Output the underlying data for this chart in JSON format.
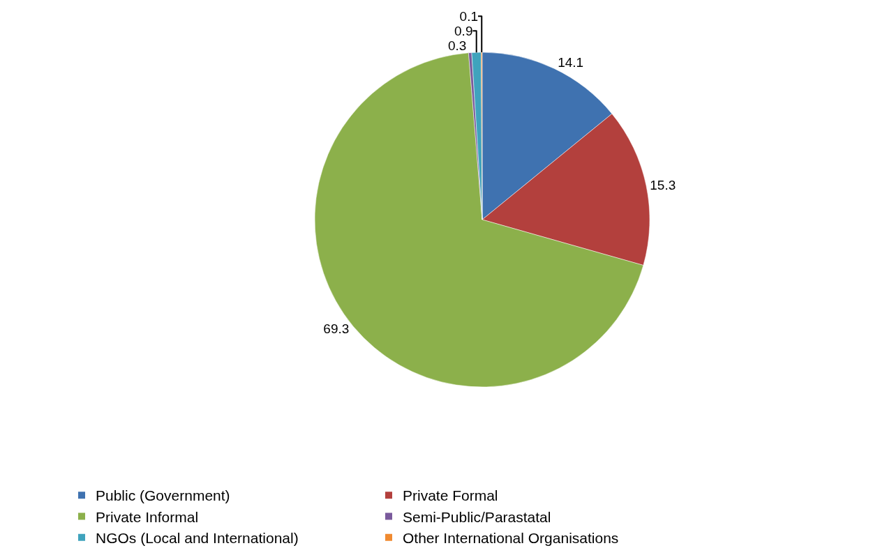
{
  "chart_data": {
    "type": "pie",
    "categories": [
      "Public (Government)",
      "Private Formal",
      "Private Informal",
      "Semi-Public/Parastatal",
      "NGOs (Local and International)",
      "Other International Organisations"
    ],
    "values": [
      14.1,
      15.3,
      69.3,
      0.3,
      0.9,
      0.1
    ],
    "colors": [
      "#3f72b0",
      "#b3403d",
      "#8cb04b",
      "#7a5a9c",
      "#3fa3bd",
      "#f08a30"
    ],
    "data_labels": true,
    "legend": "bottom"
  }
}
